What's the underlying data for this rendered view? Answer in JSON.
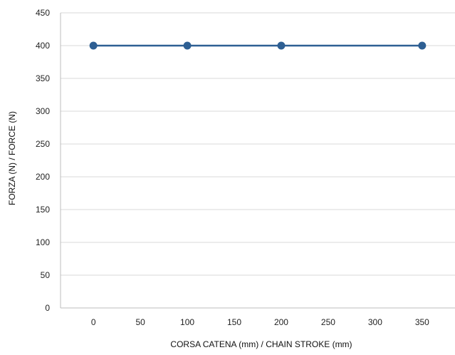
{
  "chart_data": {
    "type": "line",
    "title": "",
    "xlabel_bold": "CORSA CATENA (mm)",
    "xlabel_rest": " / CHAIN STROKE (mm)",
    "ylabel_bold": "FORZA (N)",
    "ylabel_rest": " / FORCE (N)",
    "xlim": [
      -35,
      385
    ],
    "ylim": [
      0,
      450
    ],
    "xticks": [
      0,
      50,
      100,
      150,
      200,
      250,
      300,
      350
    ],
    "yticks": [
      0,
      50,
      100,
      150,
      200,
      250,
      300,
      350,
      400,
      450
    ],
    "grid": true,
    "series": [
      {
        "color": "#2e5f93",
        "x": [
          0,
          100,
          200,
          350
        ],
        "y": [
          400,
          400,
          400,
          400
        ]
      }
    ]
  }
}
